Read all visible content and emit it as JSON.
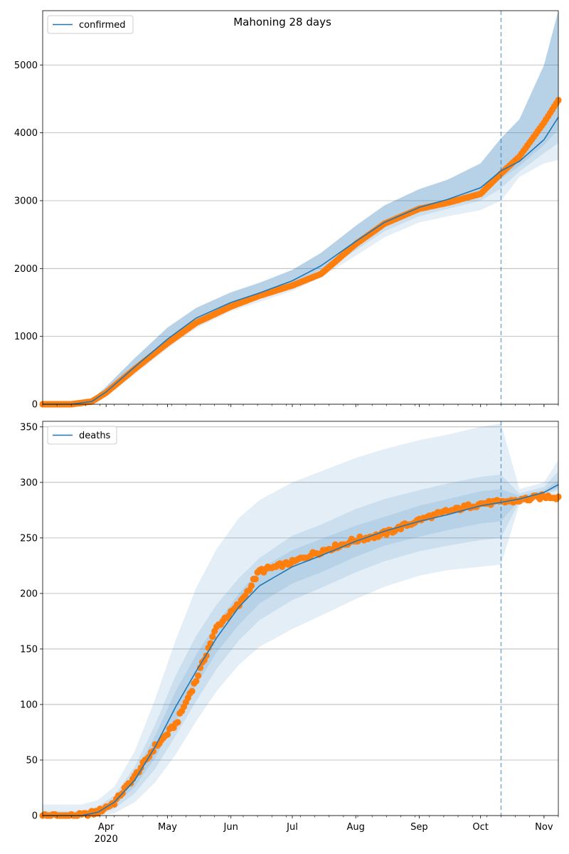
{
  "chart_data": [
    {
      "type": "line",
      "title": "Mahoning 28 days",
      "xlabel": "",
      "ylabel": "",
      "x_start": "2020-03-01",
      "x_end": "2020-11-08",
      "x_tick_labels": [
        {
          "date": "2020-04-01",
          "label": "Apr",
          "sublabel": ""
        },
        {
          "date": "2020-05-01",
          "label": "May",
          "sublabel": ""
        },
        {
          "date": "2020-06-01",
          "label": "Jun",
          "sublabel": ""
        },
        {
          "date": "2020-07-01",
          "label": "Jul",
          "sublabel": ""
        },
        {
          "date": "2020-08-01",
          "label": "Aug",
          "sublabel": ""
        },
        {
          "date": "2020-09-01",
          "label": "Sep",
          "sublabel": ""
        },
        {
          "date": "2020-10-01",
          "label": "Oct",
          "sublabel": ""
        },
        {
          "date": "2020-11-01",
          "label": "Nov",
          "sublabel": ""
        }
      ],
      "ylim": [
        0,
        5800
      ],
      "y_ticks": [
        0,
        1000,
        2000,
        3000,
        4000,
        5000
      ],
      "grid": "horizontal",
      "legend_placement": "top-left",
      "forecast_start": "2020-10-11",
      "series": [
        {
          "name": "confirmed",
          "color": "#1f77b4",
          "x": [
            "2020-03-01",
            "2020-03-15",
            "2020-03-25",
            "2020-04-01",
            "2020-04-15",
            "2020-05-01",
            "2020-05-15",
            "2020-06-01",
            "2020-06-15",
            "2020-07-01",
            "2020-07-15",
            "2020-08-01",
            "2020-08-15",
            "2020-09-01",
            "2020-09-15",
            "2020-10-01",
            "2020-10-11",
            "2020-10-20",
            "2020-11-01",
            "2020-11-08"
          ],
          "y": [
            0,
            0,
            40,
            180,
            550,
            960,
            1270,
            1500,
            1640,
            1820,
            2040,
            2400,
            2680,
            2900,
            3020,
            3190,
            3440,
            3580,
            3900,
            4230
          ]
        }
      ],
      "observed": {
        "color": "#ff7f0e",
        "x": [
          "2020-03-01",
          "2020-03-15",
          "2020-03-25",
          "2020-04-01",
          "2020-04-15",
          "2020-05-01",
          "2020-05-15",
          "2020-06-01",
          "2020-06-15",
          "2020-07-01",
          "2020-07-15",
          "2020-08-01",
          "2020-08-15",
          "2020-09-01",
          "2020-09-15",
          "2020-10-01",
          "2020-10-11",
          "2020-10-20",
          "2020-11-01",
          "2020-11-08"
        ],
        "y": [
          0,
          0,
          40,
          170,
          520,
          900,
          1200,
          1440,
          1600,
          1750,
          1920,
          2360,
          2660,
          2880,
          2970,
          3100,
          3400,
          3650,
          4150,
          4480
        ]
      },
      "bands": [
        {
          "name": "outer",
          "opacity": 0.12,
          "lower": [
            0,
            0,
            10,
            120,
            440,
            820,
            1120,
            1370,
            1510,
            1670,
            1870,
            2190,
            2460,
            2680,
            2770,
            2860,
            3000,
            3350,
            3550,
            3600
          ],
          "upper": [
            0,
            0,
            70,
            260,
            680,
            1130,
            1420,
            1650,
            1790,
            1980,
            2230,
            2630,
            2930,
            3170,
            3310,
            3550,
            3920,
            4200,
            5000,
            5800
          ]
        },
        {
          "name": "middle",
          "opacity": 0.12,
          "lower": [
            0,
            0,
            20,
            140,
            480,
            870,
            1180,
            1420,
            1560,
            1720,
            1930,
            2270,
            2550,
            2770,
            2880,
            3000,
            3180,
            3430,
            3700,
            3850
          ]
        },
        {
          "name": "inner",
          "opacity": 0.12,
          "lower": [
            0,
            0,
            30,
            160,
            520,
            920,
            1230,
            1460,
            1600,
            1770,
            1990,
            2340,
            2620,
            2840,
            2960,
            3100,
            3320,
            3510,
            3820,
            4050
          ]
        }
      ]
    },
    {
      "type": "line",
      "title": "",
      "xlabel": "",
      "ylabel": "",
      "x_start": "2020-03-01",
      "x_end": "2020-11-08",
      "x_tick_labels": [
        {
          "date": "2020-04-01",
          "label": "Apr",
          "sublabel": "2020"
        },
        {
          "date": "2020-05-01",
          "label": "May",
          "sublabel": ""
        },
        {
          "date": "2020-06-01",
          "label": "Jun",
          "sublabel": ""
        },
        {
          "date": "2020-07-01",
          "label": "Jul",
          "sublabel": ""
        },
        {
          "date": "2020-08-01",
          "label": "Aug",
          "sublabel": ""
        },
        {
          "date": "2020-09-01",
          "label": "Sep",
          "sublabel": ""
        },
        {
          "date": "2020-10-01",
          "label": "Oct",
          "sublabel": ""
        },
        {
          "date": "2020-11-01",
          "label": "Nov",
          "sublabel": ""
        }
      ],
      "ylim": [
        0,
        355
      ],
      "y_ticks": [
        0,
        50,
        100,
        150,
        200,
        250,
        300,
        350
      ],
      "grid": "horizontal",
      "legend_placement": "top-left",
      "forecast_start": "2020-10-11",
      "series": [
        {
          "name": "deaths",
          "color": "#1f77b4",
          "x": [
            "2020-03-01",
            "2020-03-20",
            "2020-03-28",
            "2020-04-05",
            "2020-04-15",
            "2020-04-25",
            "2020-05-05",
            "2020-05-15",
            "2020-05-25",
            "2020-06-05",
            "2020-06-15",
            "2020-07-01",
            "2020-07-15",
            "2020-08-01",
            "2020-08-15",
            "2020-09-01",
            "2020-09-15",
            "2020-10-01",
            "2020-10-11",
            "2020-10-20",
            "2020-11-01",
            "2020-11-08"
          ],
          "y": [
            0,
            0,
            3,
            12,
            32,
            62,
            98,
            130,
            160,
            188,
            207,
            224,
            234,
            247,
            256,
            265,
            271,
            279,
            282,
            285,
            291,
            298
          ]
        }
      ],
      "observed": {
        "color": "#ff7f0e",
        "x": [
          "2020-03-01",
          "2020-03-20",
          "2020-03-28",
          "2020-04-05",
          "2020-04-15",
          "2020-04-25",
          "2020-05-05",
          "2020-05-15",
          "2020-05-25",
          "2020-06-05",
          "2020-06-15",
          "2020-07-01",
          "2020-07-15",
          "2020-08-01",
          "2020-08-15",
          "2020-09-01",
          "2020-09-15",
          "2020-10-01",
          "2020-10-11",
          "2020-10-20",
          "2020-11-01",
          "2020-11-08"
        ],
        "y": [
          0,
          0,
          3,
          12,
          35,
          62,
          82,
          122,
          170,
          190,
          220,
          228,
          238,
          248,
          254,
          266,
          274,
          281,
          282,
          284,
          287,
          287
        ]
      },
      "bands": [
        {
          "name": "outer",
          "opacity": 0.12,
          "lower": [
            0,
            0,
            0,
            2,
            12,
            30,
            55,
            85,
            112,
            136,
            152,
            168,
            180,
            195,
            206,
            216,
            221,
            224,
            226,
            280,
            286,
            289
          ],
          "upper": [
            10,
            10,
            14,
            26,
            58,
            105,
            158,
            205,
            240,
            268,
            284,
            300,
            310,
            322,
            330,
            338,
            343,
            350,
            353,
            294,
            300,
            320
          ]
        },
        {
          "name": "middle",
          "opacity": 0.12,
          "lower": [
            0,
            0,
            1,
            6,
            20,
            42,
            72,
            103,
            132,
            158,
            176,
            194,
            205,
            219,
            229,
            238,
            243,
            248,
            250,
            283,
            289,
            293
          ],
          "upper": [
            4,
            4,
            8,
            18,
            44,
            82,
            126,
            162,
            190,
            214,
            232,
            252,
            262,
            276,
            285,
            293,
            299,
            305,
            307,
            290,
            296,
            310
          ]
        },
        {
          "name": "inner",
          "opacity": 0.12,
          "lower": [
            0,
            0,
            2,
            9,
            26,
            52,
            85,
            117,
            147,
            172,
            191,
            209,
            219,
            233,
            243,
            251,
            257,
            263,
            265,
            284,
            290,
            295
          ],
          "upper": [
            2,
            2,
            5,
            15,
            38,
            72,
            112,
            145,
            173,
            200,
            222,
            239,
            249,
            261,
            269,
            279,
            285,
            292,
            294,
            288,
            293,
            302
          ]
        }
      ]
    }
  ]
}
